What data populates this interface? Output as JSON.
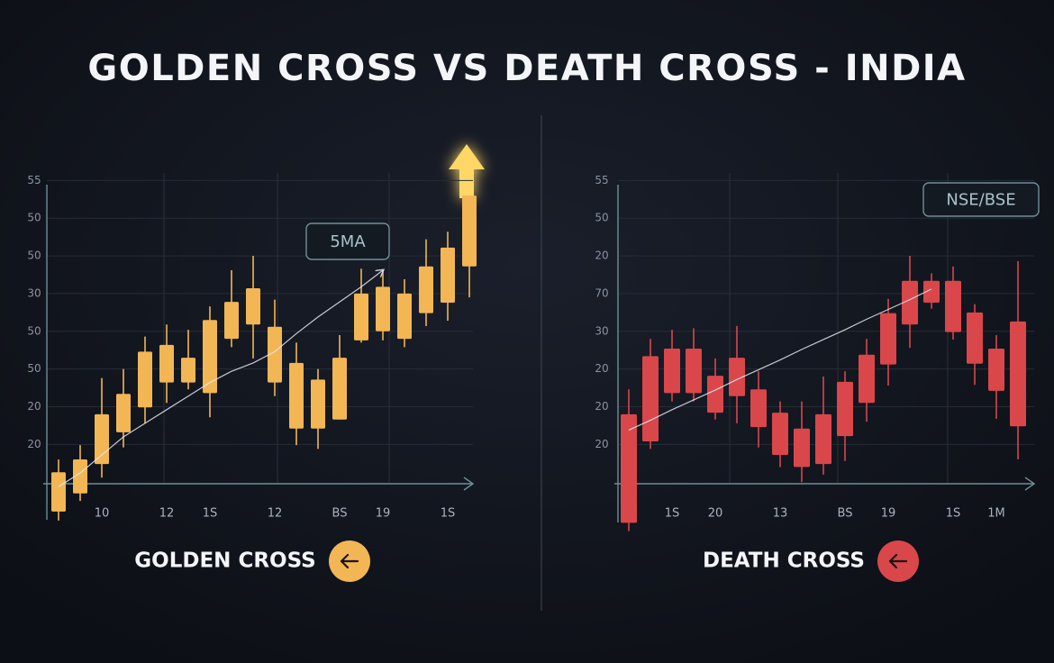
{
  "title": "GOLDEN CROSS VS DEATH CROSS - INDIA",
  "chart_data": [
    {
      "type": "candlestick",
      "caption": "GOLDEN CROSS",
      "annotation": "5MA",
      "color": "#f2b655",
      "ma_color": "#e6e9ef",
      "categories": [
        null,
        null,
        "10",
        null,
        null,
        "12",
        null,
        "1S",
        null,
        null,
        "12",
        null,
        null,
        "BS",
        null,
        "19",
        null,
        null,
        "1S",
        null
      ],
      "open": [
        11.1,
        13.5,
        17.4,
        21.6,
        24.9,
        28.2,
        28.2,
        26.8,
        34.0,
        35.9,
        28.2,
        22.1,
        22.1,
        23.3,
        33.8,
        35.0,
        34.0,
        37.4,
        38.8,
        43.6
      ],
      "close": [
        16.3,
        18.0,
        24.0,
        26.7,
        32.3,
        33.2,
        31.5,
        36.5,
        38.9,
        40.7,
        35.6,
        30.8,
        28.6,
        31.5,
        40.0,
        40.9,
        40.0,
        43.6,
        46.1,
        53.0
      ],
      "high": [
        18.0,
        19.9,
        28.8,
        30.0,
        34.3,
        35.9,
        35.2,
        38.3,
        43.1,
        45.0,
        39.2,
        33.5,
        30.0,
        34.5,
        43.3,
        43.1,
        41.9,
        47.2,
        48.2,
        53.0
      ],
      "low": [
        9.9,
        12.5,
        15.6,
        19.6,
        22.8,
        25.5,
        27.3,
        23.6,
        32.9,
        31.4,
        26.4,
        19.9,
        19.4,
        23.3,
        33.5,
        33.8,
        32.9,
        35.7,
        36.4,
        39.5
      ],
      "ma_values": [
        14.4,
        16.2,
        18.6,
        21.0,
        22.8,
        24.6,
        26.4,
        28.2,
        29.7,
        30.8,
        32.3,
        34.7,
        36.9,
        38.9,
        40.9,
        43.1,
        null,
        null,
        null,
        null
      ],
      "ylim": [
        9,
        56
      ],
      "yticks": [
        20,
        {
          "value": 25,
          "label": "20"
        },
        {
          "value": 30,
          "label": "50"
        },
        {
          "value": 35,
          "label": "50"
        },
        {
          "value": 40,
          "label": "30"
        },
        {
          "value": 45,
          "label": "50"
        },
        50,
        55
      ],
      "grid": true
    },
    {
      "type": "candlestick",
      "caption": "DEATH CROSS",
      "annotation": "NSE/BSE",
      "color": "#d9474b",
      "ma_color": "#e6e9ef",
      "categories": [
        null,
        null,
        "1S",
        null,
        "20",
        null,
        null,
        "13",
        null,
        null,
        "BS",
        null,
        "19",
        null,
        null,
        "1S",
        null,
        "1M",
        null
      ],
      "open": [
        24.0,
        20.4,
        26.8,
        26.8,
        24.2,
        31.5,
        27.3,
        24.2,
        22.1,
        17.4,
        21.1,
        25.5,
        30.6,
        35.9,
        41.7,
        41.7,
        37.5,
        32.7,
        36.3
      ],
      "close": [
        9.6,
        31.7,
        32.7,
        32.7,
        29.1,
        26.4,
        22.3,
        18.6,
        17.0,
        24.0,
        28.3,
        31.9,
        37.4,
        41.7,
        38.8,
        34.9,
        30.7,
        27.1,
        22.4
      ],
      "high": [
        27.3,
        34.0,
        35.2,
        35.4,
        31.4,
        35.7,
        29.7,
        25.7,
        25.7,
        29.0,
        29.7,
        34.0,
        39.3,
        45.0,
        42.7,
        43.6,
        38.6,
        34.5,
        44.3
      ],
      "low": [
        8.5,
        19.4,
        25.7,
        25.7,
        23.3,
        22.8,
        19.6,
        17.0,
        15.0,
        16.0,
        17.8,
        23.0,
        27.8,
        32.8,
        38.0,
        33.9,
        27.9,
        23.4,
        18.0
      ],
      "ma_values": [
        21.9,
        23.2,
        24.6,
        25.9,
        27.2,
        28.6,
        29.9,
        31.2,
        32.6,
        33.9,
        35.2,
        36.6,
        37.9,
        39.2,
        40.6,
        null,
        null,
        null,
        null
      ],
      "ylim": [
        8,
        56
      ],
      "yticks": [
        20,
        {
          "value": 25,
          "label": "20"
        },
        {
          "value": 30,
          "label": "20"
        },
        {
          "value": 35,
          "label": "30"
        },
        {
          "value": 40,
          "label": "70"
        },
        {
          "value": 45,
          "label": "20"
        },
        50,
        55
      ],
      "grid": true
    }
  ]
}
